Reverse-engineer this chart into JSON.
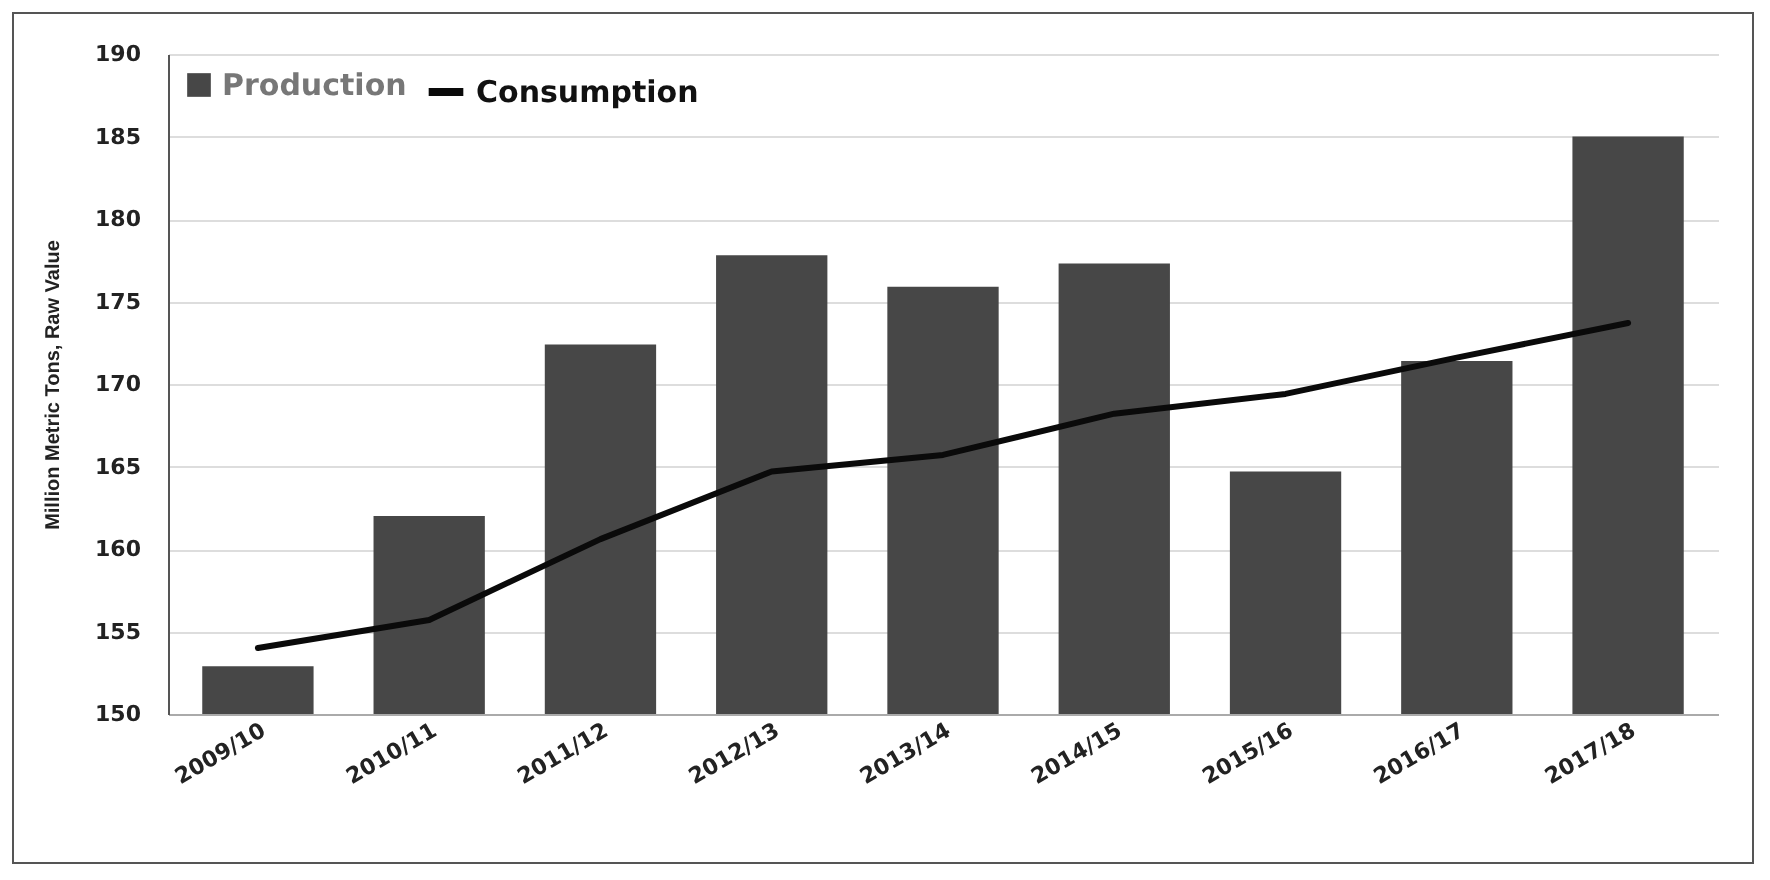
{
  "chart_data": {
    "type": "bar",
    "ylabel": "Million Metric Tons, Raw Value",
    "categories": [
      "2009/10",
      "2010/11",
      "2011/12",
      "2012/13",
      "2013/14",
      "2014/15",
      "2015/16",
      "2016/17",
      "2017/18"
    ],
    "series": [
      {
        "name": "Production",
        "color": "#474747",
        "values": [
          152.9,
          162,
          172.4,
          177.8,
          175.9,
          177.3,
          164.7,
          171.4,
          185
        ]
      },
      {
        "name": "Consumption",
        "type": "line",
        "color": "#0a0a0a",
        "values": [
          154,
          155.7,
          160.6,
          164.7,
          165.7,
          168.2,
          169.4,
          171.6,
          173.7
        ]
      }
    ],
    "ylim": [
      150,
      190
    ],
    "yticks": [
      150,
      155,
      160,
      165,
      170,
      175,
      180,
      185,
      190
    ],
    "grid": "y",
    "legend": "top left"
  }
}
